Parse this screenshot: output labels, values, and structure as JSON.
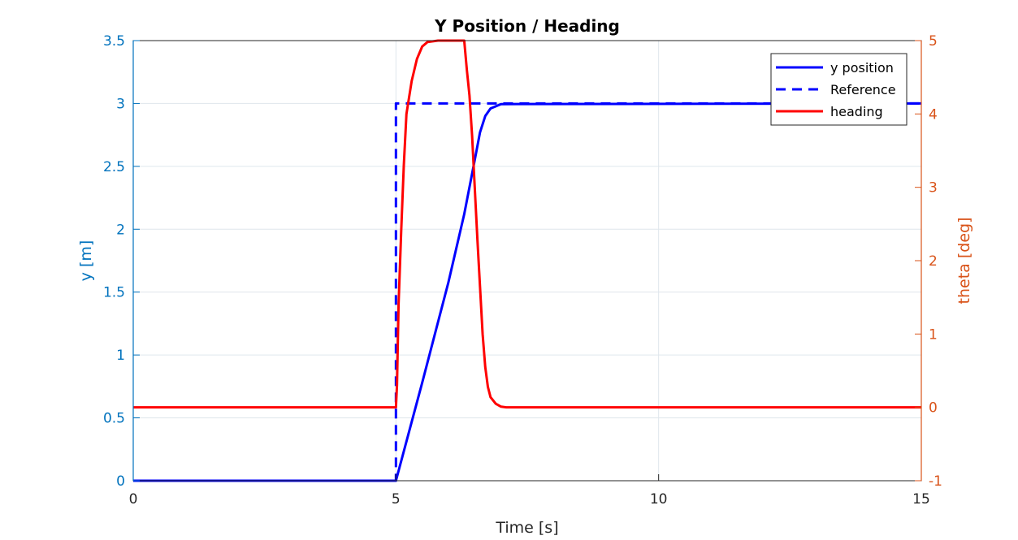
{
  "chart_data": {
    "type": "line",
    "title": "Y Position / Heading",
    "xlabel": "Time [s]",
    "ylabel_left": "y [m]",
    "ylabel_right": "theta [deg]",
    "xlim": [
      0,
      15
    ],
    "ylim_left": [
      0,
      3.5
    ],
    "ylim_right": [
      -1,
      5
    ],
    "x_ticks": [
      "0",
      "5",
      "10",
      "15"
    ],
    "y_left_ticks": [
      "0",
      "0.5",
      "1",
      "1.5",
      "2",
      "2.5",
      "3",
      "3.5"
    ],
    "y_right_ticks": [
      "-1",
      "0",
      "1",
      "2",
      "3",
      "4",
      "5"
    ],
    "grid": true,
    "legend_position": "top-right",
    "colors": {
      "left_axis": "#0072BD",
      "right_axis": "#D95319",
      "y_position": "#0000FF",
      "reference": "#0000FF",
      "heading": "#FF0000",
      "grid": "#dfe6ec"
    },
    "series": [
      {
        "name": "y position",
        "axis": "left",
        "style": "solid",
        "x": [
          0,
          5.0,
          5.5,
          6.0,
          6.3,
          6.5,
          6.6,
          6.7,
          6.8,
          7.0,
          15
        ],
        "y": [
          0,
          0,
          0.78,
          1.58,
          2.12,
          2.55,
          2.77,
          2.9,
          2.96,
          2.995,
          3.0
        ]
      },
      {
        "name": "Reference",
        "axis": "left",
        "style": "dashed",
        "x": [
          0,
          5.0,
          5.0,
          15
        ],
        "y": [
          0,
          0,
          3,
          3
        ]
      },
      {
        "name": "heading",
        "axis": "right",
        "style": "solid",
        "x": [
          0,
          5.0,
          5.02,
          5.05,
          5.1,
          5.15,
          5.2,
          5.3,
          5.4,
          5.5,
          5.6,
          5.8,
          6.3,
          6.35,
          6.4,
          6.45,
          6.5,
          6.55,
          6.6,
          6.65,
          6.7,
          6.75,
          6.8,
          6.9,
          7.0,
          7.1,
          7.2,
          15
        ],
        "y": [
          0,
          0,
          0.3,
          1.4,
          2.4,
          3.3,
          4.0,
          4.45,
          4.75,
          4.92,
          4.98,
          5.0,
          5.0,
          4.6,
          4.25,
          3.7,
          3.0,
          2.3,
          1.65,
          1.0,
          0.55,
          0.28,
          0.14,
          0.05,
          0.01,
          0.0,
          0.0,
          0.0
        ]
      }
    ]
  }
}
